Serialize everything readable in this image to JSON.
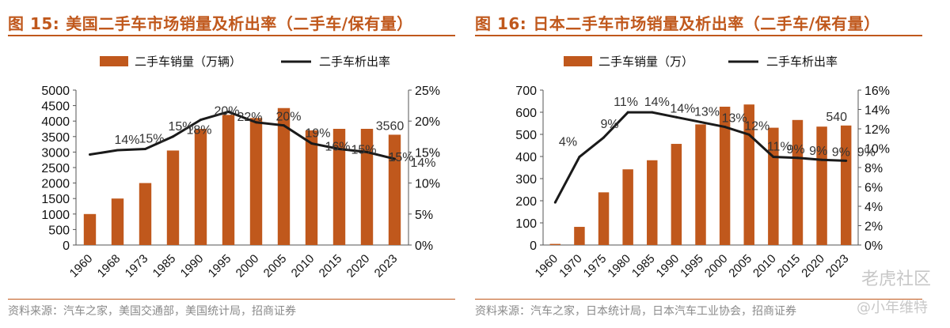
{
  "chart_data": [
    {
      "type": "bar+line",
      "figure_number": "图 15:",
      "title": "美国二手车市场销量及析出率（二手车/保有量）",
      "source": "资料来源：汽车之家，美国交通部，美国统计局，招商证券",
      "categories": [
        "1960",
        "1968",
        "1973",
        "1985",
        "1990",
        "1995",
        "2000",
        "2005",
        "2010",
        "2015",
        "2020",
        "2023"
      ],
      "series": [
        {
          "name": "二手车销量（万辆）",
          "kind": "bar",
          "axis": "left",
          "values": [
            1000,
            1500,
            2000,
            3050,
            3750,
            4200,
            4100,
            4420,
            3700,
            3750,
            3750,
            3560
          ]
        },
        {
          "name": "二手车析出率",
          "kind": "line",
          "axis": "right",
          "values": [
            14.6,
            15.3,
            15.5,
            17.5,
            20.2,
            21.5,
            19.8,
            19.3,
            16.4,
            15.5,
            15.0,
            13.9
          ]
        }
      ],
      "left_axis": {
        "min": 0,
        "max": 5000,
        "step": 500,
        "tick_labels": [
          "0",
          "500",
          "1000",
          "1500",
          "2000",
          "2500",
          "3000",
          "3500",
          "4000",
          "4500",
          "5000"
        ]
      },
      "right_axis": {
        "min": 0,
        "max": 25,
        "step": 5,
        "tick_labels": [
          "0%",
          "5%",
          "10%",
          "15%",
          "20%",
          "25%"
        ]
      },
      "bar_labels": [
        {
          "index": 11,
          "text": "3560"
        }
      ],
      "line_labels": [
        {
          "index": 1,
          "text": "14%"
        },
        {
          "index": 2,
          "text": "15%"
        },
        {
          "index": 3,
          "text": "15%"
        },
        {
          "index": 4,
          "text": "18%"
        },
        {
          "index": 5,
          "text": "20%"
        },
        {
          "index": 6,
          "text": "22%"
        },
        {
          "index": 7,
          "text": "20%"
        },
        {
          "index": 8,
          "text": "19%"
        },
        {
          "index": 9,
          "text": "16%"
        },
        {
          "index": 10,
          "text": "15%"
        },
        {
          "index": 11,
          "text": "15%"
        },
        {
          "index": 11,
          "text": "14%"
        }
      ],
      "colors": {
        "bar": "#c0581c",
        "line": "#1a1a1a"
      }
    },
    {
      "type": "bar+line",
      "figure_number": "图 16:",
      "title": "日本二手车市场销量及析出率（二手车/保有量）",
      "source": "资料来源：汽车之家，日本统计局，日本汽车工业协会，招商证券",
      "categories": [
        "1960",
        "1970",
        "1975",
        "1980",
        "1985",
        "1990",
        "1995",
        "2000",
        "2005",
        "2010",
        "2015",
        "2020",
        "2023"
      ],
      "series": [
        {
          "name": "二手车销量（万）",
          "kind": "bar",
          "axis": "left",
          "values": [
            5,
            82,
            238,
            342,
            383,
            457,
            545,
            625,
            635,
            530,
            565,
            535,
            540
          ]
        },
        {
          "name": "二手车析出率",
          "kind": "line",
          "axis": "right",
          "values": [
            4.4,
            9.1,
            11.1,
            13.7,
            13.7,
            13.2,
            12.7,
            12.2,
            11.4,
            9.1,
            9.0,
            8.8,
            8.7
          ]
        }
      ],
      "left_axis": {
        "min": 0,
        "max": 700,
        "step": 100,
        "tick_labels": [
          "0",
          "100",
          "200",
          "300",
          "400",
          "500",
          "600",
          "700"
        ]
      },
      "right_axis": {
        "min": 0,
        "max": 16,
        "step": 2,
        "tick_labels": [
          "0%",
          "2%",
          "4%",
          "6%",
          "8%",
          "10%",
          "12%",
          "14%",
          "16%"
        ]
      },
      "bar_labels": [
        {
          "index": 12,
          "text": "540"
        }
      ],
      "line_labels": [
        {
          "index": 1,
          "text": "4%"
        },
        {
          "index": 2,
          "text": "9%"
        },
        {
          "index": 3,
          "text": "11%"
        },
        {
          "index": 4,
          "text": "14%"
        },
        {
          "index": 5,
          "text": "14%"
        },
        {
          "index": 6,
          "text": "13%"
        },
        {
          "index": 7,
          "text": "13%"
        },
        {
          "index": 8,
          "text": "12%"
        },
        {
          "index": 9,
          "text": "11%"
        },
        {
          "index": 10,
          "text": "9%"
        },
        {
          "index": 11,
          "text": "9%"
        },
        {
          "index": 12,
          "text": "9%"
        },
        {
          "index": 12,
          "text": "9%"
        }
      ],
      "colors": {
        "bar": "#c0581c",
        "line": "#1a1a1a"
      }
    }
  ],
  "watermark": {
    "text_1": "老虎社区",
    "text_2": "@小年维特"
  }
}
